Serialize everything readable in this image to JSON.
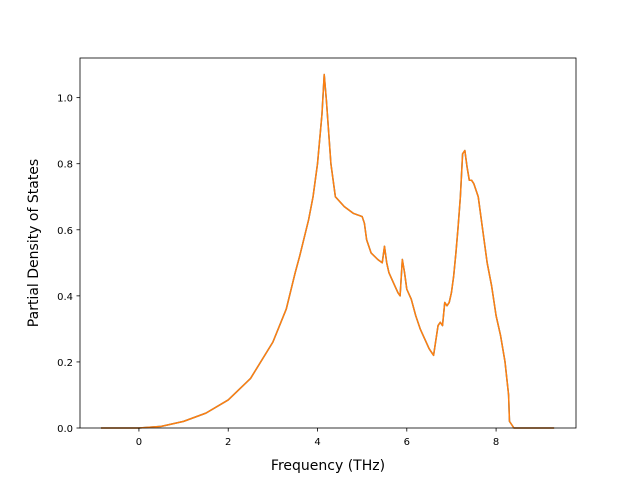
{
  "chart_data": {
    "type": "line",
    "xlabel": "Frequency (THz)",
    "ylabel": "Partial Density of States",
    "xlim": [
      -1.32,
      9.79
    ],
    "ylim": [
      0,
      1.12
    ],
    "grid": false,
    "x_ticks": [
      "0",
      "2",
      "4",
      "6",
      "8"
    ],
    "y_ticks": [
      "0.0",
      "0.2",
      "0.4",
      "0.6",
      "0.8",
      "1.0"
    ],
    "x_tick_values": [
      0,
      2,
      4,
      6,
      8
    ],
    "y_tick_values": [
      0.0,
      0.2,
      0.4,
      0.6,
      0.8,
      1.0
    ],
    "series": [
      {
        "color": "#1f77b4",
        "x": [
          -0.85,
          0.0,
          0.5,
          1.0,
          1.5,
          2.0,
          2.5,
          3.0,
          3.3,
          3.5,
          3.6,
          3.8,
          3.9,
          4.0,
          4.1,
          4.15,
          4.2,
          4.3,
          4.4,
          4.6,
          4.8,
          5.0,
          5.05,
          5.1,
          5.2,
          5.35,
          5.45,
          5.5,
          5.55,
          5.6,
          5.7,
          5.8,
          5.85,
          5.9,
          5.95,
          6.0,
          6.1,
          6.2,
          6.3,
          6.4,
          6.5,
          6.55,
          6.6,
          6.7,
          6.75,
          6.8,
          6.85,
          6.9,
          6.95,
          7.0,
          7.05,
          7.1,
          7.15,
          7.2,
          7.25,
          7.3,
          7.35,
          7.4,
          7.45,
          7.5,
          7.55,
          7.6,
          7.7,
          7.8,
          7.9,
          8.0,
          8.1,
          8.2,
          8.28,
          8.3,
          8.4,
          9.3
        ],
        "y": [
          0.0,
          0.0,
          0.005,
          0.02,
          0.045,
          0.085,
          0.15,
          0.26,
          0.36,
          0.47,
          0.52,
          0.63,
          0.7,
          0.8,
          0.95,
          1.07,
          0.99,
          0.8,
          0.7,
          0.67,
          0.65,
          0.64,
          0.62,
          0.57,
          0.53,
          0.51,
          0.5,
          0.55,
          0.5,
          0.47,
          0.44,
          0.41,
          0.4,
          0.51,
          0.47,
          0.42,
          0.39,
          0.34,
          0.3,
          0.27,
          0.24,
          0.23,
          0.22,
          0.31,
          0.32,
          0.31,
          0.38,
          0.37,
          0.38,
          0.41,
          0.46,
          0.53,
          0.61,
          0.7,
          0.83,
          0.84,
          0.79,
          0.75,
          0.75,
          0.74,
          0.72,
          0.7,
          0.6,
          0.5,
          0.43,
          0.34,
          0.28,
          0.2,
          0.1,
          0.02,
          0.0,
          0.0
        ]
      },
      {
        "color": "#ff7f0e",
        "x": [
          -0.85,
          0.0,
          0.5,
          1.0,
          1.5,
          2.0,
          2.5,
          3.0,
          3.3,
          3.5,
          3.6,
          3.8,
          3.9,
          4.0,
          4.1,
          4.15,
          4.2,
          4.3,
          4.4,
          4.6,
          4.8,
          5.0,
          5.05,
          5.1,
          5.2,
          5.35,
          5.45,
          5.5,
          5.55,
          5.6,
          5.7,
          5.8,
          5.85,
          5.9,
          5.95,
          6.0,
          6.1,
          6.2,
          6.3,
          6.4,
          6.5,
          6.55,
          6.6,
          6.7,
          6.75,
          6.8,
          6.85,
          6.9,
          6.95,
          7.0,
          7.05,
          7.1,
          7.15,
          7.2,
          7.25,
          7.3,
          7.35,
          7.4,
          7.45,
          7.5,
          7.55,
          7.6,
          7.7,
          7.8,
          7.9,
          8.0,
          8.1,
          8.2,
          8.28,
          8.3,
          8.4,
          9.3
        ],
        "y": [
          0.0,
          0.0,
          0.005,
          0.02,
          0.045,
          0.085,
          0.15,
          0.26,
          0.36,
          0.47,
          0.52,
          0.63,
          0.7,
          0.8,
          0.95,
          1.07,
          0.99,
          0.8,
          0.7,
          0.67,
          0.65,
          0.64,
          0.62,
          0.57,
          0.53,
          0.51,
          0.5,
          0.55,
          0.5,
          0.47,
          0.44,
          0.41,
          0.4,
          0.51,
          0.47,
          0.42,
          0.39,
          0.34,
          0.3,
          0.27,
          0.24,
          0.23,
          0.22,
          0.31,
          0.32,
          0.31,
          0.38,
          0.37,
          0.38,
          0.41,
          0.46,
          0.53,
          0.61,
          0.7,
          0.83,
          0.84,
          0.79,
          0.75,
          0.75,
          0.74,
          0.72,
          0.7,
          0.6,
          0.5,
          0.43,
          0.34,
          0.28,
          0.2,
          0.1,
          0.02,
          0.0,
          0.0
        ]
      }
    ]
  }
}
